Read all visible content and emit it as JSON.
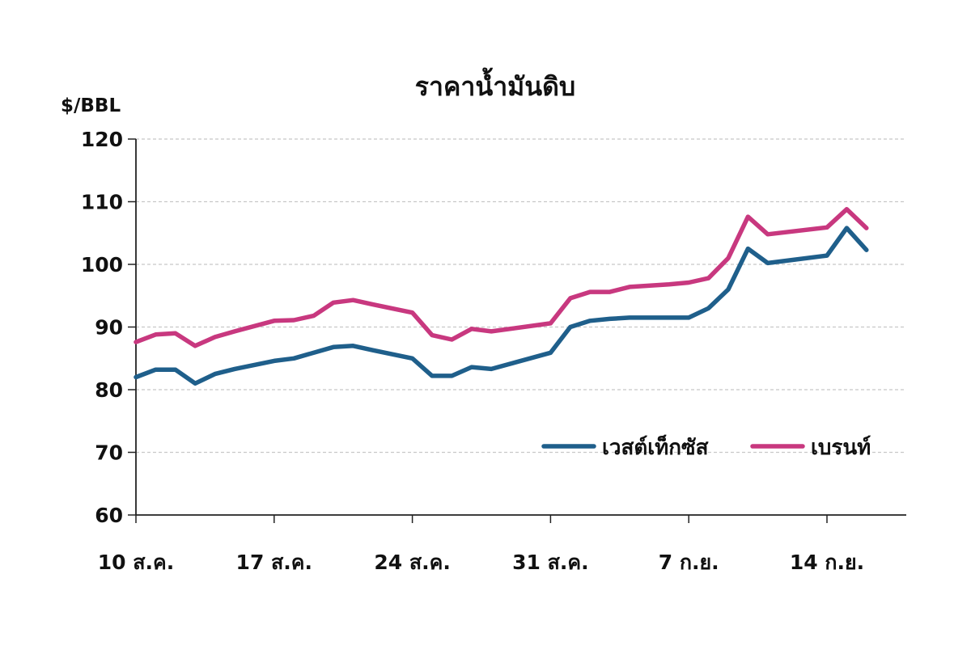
{
  "chart_data": {
    "type": "line",
    "title": "ราคาน้ำมันดิบ",
    "ylabel": "$/BBL",
    "xlabel": "",
    "ylim": [
      60,
      120
    ],
    "yticks": [
      60,
      70,
      80,
      90,
      100,
      110,
      120
    ],
    "grid": true,
    "legend_position": "lower-right",
    "x_tick_labels": [
      {
        "label": "10 ส.ค.",
        "day": 0
      },
      {
        "label": "17 ส.ค.",
        "day": 7
      },
      {
        "label": "24 ส.ค.",
        "day": 14
      },
      {
        "label": "31 ส.ค.",
        "day": 21
      },
      {
        "label": "7 ก.ย.",
        "day": 28
      },
      {
        "label": "14 ก.ย.",
        "day": 35
      }
    ],
    "series": [
      {
        "name": "เวสต์เท็กซัส",
        "color": "#1f5f8b",
        "points": [
          [
            0,
            82.0
          ],
          [
            1,
            83.2
          ],
          [
            2,
            83.2
          ],
          [
            3,
            81.0
          ],
          [
            4,
            82.5
          ],
          [
            5,
            83.3
          ],
          [
            7,
            84.6
          ],
          [
            8,
            85.0
          ],
          [
            10,
            86.8
          ],
          [
            11,
            87.0
          ],
          [
            12,
            86.3
          ],
          [
            14,
            85.0
          ],
          [
            15,
            82.2
          ],
          [
            16,
            82.2
          ],
          [
            17,
            83.6
          ],
          [
            18,
            83.3
          ],
          [
            21,
            85.9
          ],
          [
            22,
            90.0
          ],
          [
            23,
            91.0
          ],
          [
            24,
            91.3
          ],
          [
            25,
            91.5
          ],
          [
            26,
            91.5
          ],
          [
            28,
            91.5
          ],
          [
            29,
            93.0
          ],
          [
            30,
            96.0
          ],
          [
            31,
            102.5
          ],
          [
            32,
            100.2
          ],
          [
            35,
            101.4
          ],
          [
            36,
            105.8
          ],
          [
            37,
            102.3
          ]
        ]
      },
      {
        "name": "เบรนท์",
        "color": "#c8387f",
        "points": [
          [
            0,
            87.6
          ],
          [
            1,
            88.8
          ],
          [
            2,
            89.0
          ],
          [
            3,
            87.0
          ],
          [
            4,
            88.4
          ],
          [
            5,
            89.3
          ],
          [
            7,
            91.0
          ],
          [
            8,
            91.1
          ],
          [
            9,
            91.8
          ],
          [
            10,
            93.9
          ],
          [
            11,
            94.3
          ],
          [
            12,
            93.6
          ],
          [
            14,
            92.3
          ],
          [
            15,
            88.7
          ],
          [
            16,
            88.0
          ],
          [
            17,
            89.7
          ],
          [
            18,
            89.3
          ],
          [
            21,
            90.6
          ],
          [
            22,
            94.6
          ],
          [
            23,
            95.6
          ],
          [
            24,
            95.6
          ],
          [
            25,
            96.4
          ],
          [
            27,
            96.8
          ],
          [
            28,
            97.1
          ],
          [
            29,
            97.8
          ],
          [
            30,
            101.0
          ],
          [
            31,
            107.6
          ],
          [
            32,
            104.8
          ],
          [
            35,
            105.9
          ],
          [
            36,
            108.8
          ],
          [
            37,
            105.8
          ]
        ]
      }
    ]
  }
}
